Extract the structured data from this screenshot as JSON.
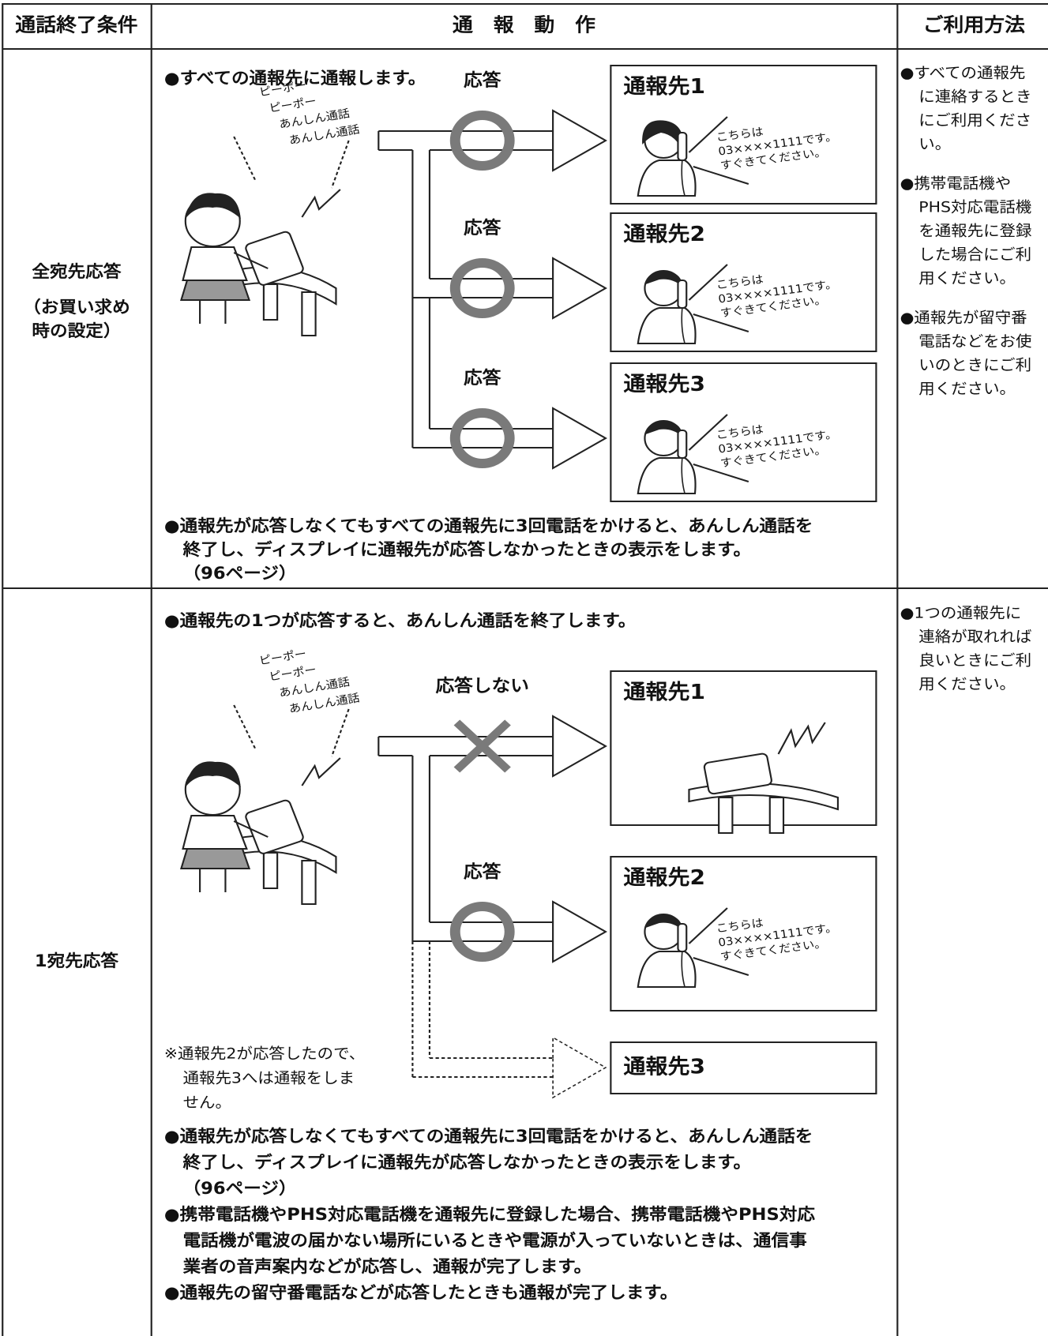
{
  "header": {
    "condition": "通話終了条件",
    "action": "通　報　動　作",
    "usage": "ご利用方法"
  },
  "rows": [
    {
      "condition": "全宛先応答",
      "condition_note": [
        "（お買い求め",
        "時の設定）"
      ],
      "intro": "●すべての通報先に通報します。",
      "caller_sound": [
        "ピーポー",
        "ピーポー",
        "あんしん通話",
        "あんしん通話"
      ],
      "destinations": [
        {
          "status": "応答",
          "name": "通報先1",
          "message": [
            "こちらは",
            "03××××1111です。",
            "すぐきてください。"
          ]
        },
        {
          "status": "応答",
          "name": "通報先2",
          "message": [
            "こちらは",
            "03××××1111です。",
            "すぐきてください。"
          ]
        },
        {
          "status": "応答",
          "name": "通報先3",
          "message": [
            "こちらは",
            "03××××1111です。",
            "すぐきてください。"
          ]
        }
      ],
      "notes": [
        [
          "●通報先が応答しなくてもすべての通報先に3回電話をかけると、あんしん通話を",
          "終了し、ディスプレイに通報先が応答しなかったときの表示をします。",
          "（96ページ）"
        ]
      ],
      "usage": [
        [
          "●すべての通報先",
          "に連絡するとき",
          "にご利用くださ",
          "い。"
        ],
        [
          "●携帯電話機や",
          "PHS対応電話機",
          "を通報先に登録",
          "した場合にご利",
          "用ください。"
        ],
        [
          "●通報先が留守番",
          "電話などをお使",
          "いのときにご利",
          "用ください。"
        ]
      ]
    },
    {
      "condition": "1宛先応答",
      "intro": "●通報先の1つが応答すると、あんしん通話を終了します。",
      "caller_sound": [
        "ピーポー",
        "ピーポー",
        "あんしん通話",
        "あんしん通話"
      ],
      "destinations": [
        {
          "status": "応答しない",
          "name": "通報先1"
        },
        {
          "status": "応答",
          "name": "通報先2",
          "message": [
            "こちらは",
            "03××××1111です。",
            "すぐきてください。"
          ]
        },
        {
          "name": "通報先3"
        }
      ],
      "side_note": [
        "※通報先2が応答したので、",
        "通報先3へは通報をしま",
        "せん。"
      ],
      "notes": [
        [
          "●通報先が応答しなくてもすべての通報先に3回電話をかけると、あんしん通話を",
          "終了し、ディスプレイに通報先が応答しなかったときの表示をします。",
          "（96ページ）"
        ],
        [
          "●携帯電話機やPHS対応電話機を通報先に登録した場合、携帯電話機やPHS対応",
          "電話機が電波の届かない場所にいるときや電源が入っていないときは、通信事",
          "業者の音声案内などが応答し、通報が完了します。"
        ],
        [
          "●通報先の留守番電話などが応答したときも通報が完了します。"
        ]
      ],
      "usage": [
        [
          "●1つの通報先に",
          "連絡が取れれば",
          "良いときにご利",
          "用ください。"
        ]
      ]
    }
  ]
}
